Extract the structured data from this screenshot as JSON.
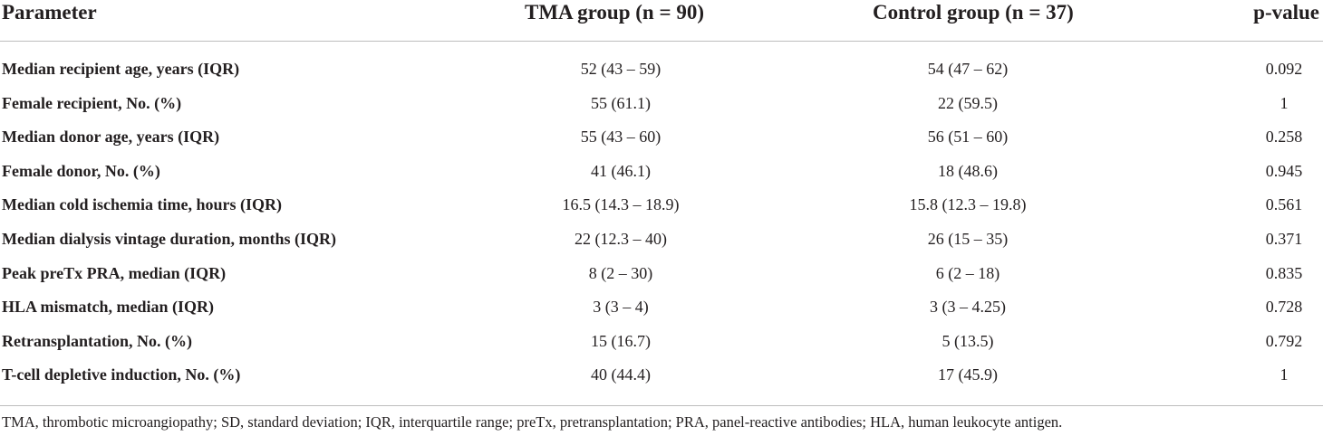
{
  "table": {
    "headers": {
      "parameter": "Parameter",
      "tma": "TMA group (n = 90)",
      "control": "Control group (n = 37)",
      "pvalue": "p-value"
    },
    "rows": [
      {
        "parameter": "Median recipient age, years (IQR)",
        "tma": "52 (43 – 59)",
        "control": "54 (47 – 62)",
        "pvalue": "0.092"
      },
      {
        "parameter": "Female recipient, No. (%)",
        "tma": "55 (61.1)",
        "control": "22 (59.5)",
        "pvalue": "1"
      },
      {
        "parameter": "Median donor age, years (IQR)",
        "tma": "55 (43 – 60)",
        "control": "56 (51 – 60)",
        "pvalue": "0.258"
      },
      {
        "parameter": "Female donor, No. (%)",
        "tma": "41 (46.1)",
        "control": "18 (48.6)",
        "pvalue": "0.945"
      },
      {
        "parameter": "Median cold ischemia time, hours (IQR)",
        "tma": "16.5 (14.3 – 18.9)",
        "control": "15.8 (12.3 – 19.8)",
        "pvalue": "0.561"
      },
      {
        "parameter": "Median dialysis vintage duration, months (IQR)",
        "tma": "22 (12.3 – 40)",
        "control": "26 (15 – 35)",
        "pvalue": "0.371"
      },
      {
        "parameter": "Peak preTx PRA, median (IQR)",
        "tma": "8 (2 – 30)",
        "control": "6 (2 – 18)",
        "pvalue": "0.835"
      },
      {
        "parameter": "HLA mismatch, median (IQR)",
        "tma": "3 (3 – 4)",
        "control": "3 (3 – 4.25)",
        "pvalue": "0.728"
      },
      {
        "parameter": "Retransplantation, No. (%)",
        "tma": "15 (16.7)",
        "control": "5 (13.5)",
        "pvalue": "0.792"
      },
      {
        "parameter": "T-cell depletive induction, No. (%)",
        "tma": "40 (44.4)",
        "control": "17 (45.9)",
        "pvalue": "1"
      }
    ],
    "footnote": "TMA, thrombotic microangiopathy; SD, standard deviation; IQR, interquartile range; preTx, pretransplantation; PRA, panel-reactive antibodies; HLA, human leukocyte antigen."
  }
}
